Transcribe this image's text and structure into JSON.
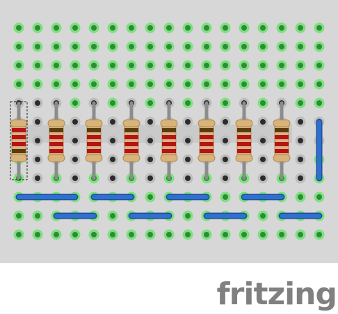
{
  "app": {
    "logo_text": "fritzing"
  },
  "breadboard": {
    "rows": 12,
    "cols": 17,
    "colors": {
      "board": "#d7d7d7",
      "hole": "#2b2b2b",
      "hole_ring": "#bdbdbd",
      "hole_connected_ring": "#7ee07e",
      "hole_connected": "#2e8b3a",
      "wire": "#2f6fce",
      "wire_outline": "#1d4f9a",
      "resistor_body": "#d9b47a",
      "lead": "#8c8c8c",
      "highlight_strip": "#cacaca"
    },
    "connected_rows": [
      0,
      1,
      2,
      3,
      9,
      10,
      11
    ],
    "connected_extra": [
      {
        "row": 4,
        "cols": [
          3,
          5,
          7,
          9,
          11,
          13,
          15,
          16
        ]
      },
      {
        "row": 7,
        "cols": [
          0,
          16
        ]
      },
      {
        "row": 8,
        "cols": [
          0,
          2,
          4,
          6,
          8,
          10,
          12,
          14,
          16
        ]
      }
    ],
    "resistors": [
      {
        "col": 0,
        "top_row": 4,
        "bottom_row": 8,
        "selected": true,
        "bands": [
          "#b5121b",
          "#b5121b",
          "#b5121b",
          "#5a3b10"
        ]
      },
      {
        "col": 2,
        "top_row": 4,
        "bottom_row": 8,
        "selected": false,
        "bands": [
          "#5a3b10",
          "#b5121b",
          "#b5121b",
          "#b5121b"
        ]
      },
      {
        "col": 4,
        "top_row": 4,
        "bottom_row": 8,
        "selected": false,
        "bands": [
          "#5a3b10",
          "#b5121b",
          "#b5121b",
          "#b5121b"
        ]
      },
      {
        "col": 6,
        "top_row": 4,
        "bottom_row": 8,
        "selected": false,
        "bands": [
          "#5a3b10",
          "#b5121b",
          "#b5121b",
          "#b5121b"
        ]
      },
      {
        "col": 8,
        "top_row": 4,
        "bottom_row": 8,
        "selected": false,
        "bands": [
          "#5a3b10",
          "#b5121b",
          "#b5121b",
          "#b5121b"
        ]
      },
      {
        "col": 10,
        "top_row": 4,
        "bottom_row": 8,
        "selected": false,
        "bands": [
          "#5a3b10",
          "#b5121b",
          "#b5121b",
          "#b5121b"
        ]
      },
      {
        "col": 12,
        "top_row": 4,
        "bottom_row": 8,
        "selected": false,
        "bands": [
          "#5a3b10",
          "#b5121b",
          "#b5121b",
          "#b5121b"
        ]
      },
      {
        "col": 14,
        "top_row": 4,
        "bottom_row": 8,
        "selected": false,
        "bands": [
          "#5a3b10",
          "#b5121b",
          "#b5121b",
          "#b5121b"
        ]
      }
    ],
    "wires": [
      {
        "from": {
          "row": 5,
          "col": 16
        },
        "to": {
          "row": 8,
          "col": 16
        }
      },
      {
        "from": {
          "row": 9,
          "col": 0
        },
        "to": {
          "row": 9,
          "col": 3
        }
      },
      {
        "from": {
          "row": 9,
          "col": 4
        },
        "to": {
          "row": 9,
          "col": 6
        }
      },
      {
        "from": {
          "row": 9,
          "col": 8
        },
        "to": {
          "row": 9,
          "col": 10
        }
      },
      {
        "from": {
          "row": 9,
          "col": 12
        },
        "to": {
          "row": 9,
          "col": 14
        }
      },
      {
        "from": {
          "row": 10,
          "col": 2
        },
        "to": {
          "row": 10,
          "col": 4
        }
      },
      {
        "from": {
          "row": 10,
          "col": 6
        },
        "to": {
          "row": 10,
          "col": 8
        }
      },
      {
        "from": {
          "row": 10,
          "col": 10
        },
        "to": {
          "row": 10,
          "col": 12
        }
      },
      {
        "from": {
          "row": 10,
          "col": 14
        },
        "to": {
          "row": 10,
          "col": 16
        }
      }
    ]
  }
}
